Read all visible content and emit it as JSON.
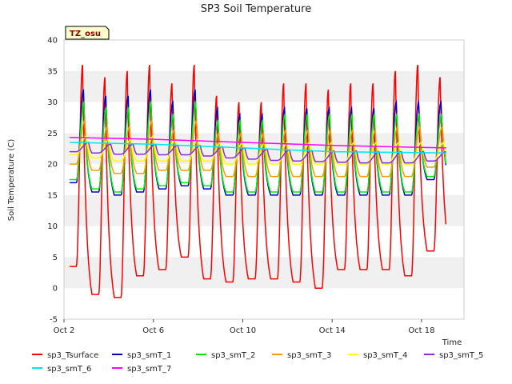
{
  "chart_data": {
    "type": "line",
    "title": "SP3 Soil Temperature",
    "xlabel": "Time",
    "ylabel": "Soil Temperature (C)",
    "badge": "TZ_osu",
    "xlim": [
      2.0,
      19.9
    ],
    "ylim": [
      -5,
      40
    ],
    "yticks": [
      -5,
      0,
      5,
      10,
      15,
      20,
      25,
      30,
      35,
      40
    ],
    "xticks": [
      {
        "value": 2,
        "label": "Oct 2"
      },
      {
        "value": 6,
        "label": "Oct 6"
      },
      {
        "value": 10,
        "label": "Oct 10"
      },
      {
        "value": 14,
        "label": "Oct 14"
      },
      {
        "value": 18,
        "label": "Oct 18"
      }
    ],
    "day_start": 2.25,
    "day_end": 19.1,
    "series": [
      {
        "name": "sp3_Tsurface",
        "color": "#ff0000",
        "peak_phase": 0.58,
        "width": 1.5,
        "highs": [
          36,
          34,
          35,
          36,
          33,
          36,
          31,
          30,
          30,
          33,
          33,
          32,
          33,
          33,
          35,
          36,
          34
        ],
        "lows": [
          3.5,
          -1,
          -1.5,
          2,
          3,
          5,
          1.5,
          1,
          1.5,
          1.5,
          1,
          0,
          3,
          3,
          3,
          2,
          6
        ]
      },
      {
        "name": "sp3_smT_1",
        "color": "#0000cc",
        "peak_phase": 0.62,
        "width": 1.5,
        "highs": [
          32,
          31,
          31,
          32,
          30,
          32,
          29,
          28,
          28,
          29,
          29,
          29,
          29,
          29,
          30,
          30,
          30
        ],
        "lows": [
          17,
          15.5,
          15,
          15.5,
          16,
          16.5,
          16,
          15,
          15,
          15,
          15,
          15,
          15,
          15,
          15,
          15,
          17.5
        ]
      },
      {
        "name": "sp3_smT_2",
        "color": "#00ee00",
        "peak_phase": 0.64,
        "width": 1.5,
        "highs": [
          30,
          29,
          29,
          30,
          28,
          30,
          27,
          27,
          27,
          28,
          28,
          28,
          28,
          28,
          28,
          28,
          28
        ],
        "lows": [
          17.5,
          16,
          15.5,
          16,
          16.5,
          17,
          16.5,
          15.5,
          15.5,
          15.5,
          15.5,
          15.5,
          15.5,
          15.5,
          15.5,
          15.5,
          18
        ]
      },
      {
        "name": "sp3_smT_3",
        "color": "#ff9900",
        "peak_phase": 0.68,
        "width": 1.5,
        "highs": [
          27,
          26,
          26,
          27,
          25.5,
          27,
          25,
          25,
          25,
          25.5,
          25.5,
          25.5,
          25.5,
          25.5,
          26,
          26,
          26
        ],
        "lows": [
          20,
          19,
          18.5,
          18.5,
          19,
          19,
          19,
          18,
          18,
          18,
          18,
          18,
          18,
          18,
          18,
          18,
          19.5
        ]
      },
      {
        "name": "sp3_smT_4",
        "color": "#ffff00",
        "peak_phase": 0.74,
        "width": 1.5,
        "highs": [
          24.5,
          24,
          24,
          24.5,
          24,
          24,
          23.5,
          23.5,
          23.5,
          23.5,
          23.5,
          23.5,
          23.5,
          23.5,
          23.5,
          23.5,
          23.5
        ],
        "lows": [
          21.5,
          21,
          20.5,
          20.5,
          20.5,
          20.5,
          20.5,
          20,
          20,
          20,
          20,
          20,
          20,
          20,
          20,
          20,
          20.5
        ]
      },
      {
        "name": "sp3_smT_5",
        "color": "#8a2be2",
        "peak_phase": 0.85,
        "width": 1.5,
        "highs": [
          23.5,
          23.2,
          23.2,
          23.2,
          23,
          23,
          22.8,
          22.6,
          22.4,
          22.3,
          22.2,
          22.1,
          22.1,
          22,
          22,
          22,
          22
        ],
        "lows": [
          22,
          21.8,
          21.6,
          21.6,
          21.5,
          21.5,
          21.3,
          21,
          20.8,
          20.6,
          20.5,
          20.4,
          20.3,
          20.2,
          20.2,
          20.2,
          20.5
        ]
      },
      {
        "name": "sp3_smT_6",
        "color": "#00e5ee",
        "flat": [
          [
            2.25,
            23.5
          ],
          [
            6,
            23.2
          ],
          [
            10,
            22.6
          ],
          [
            14,
            22.0
          ],
          [
            19.1,
            21.8
          ]
        ],
        "width": 1.5
      },
      {
        "name": "sp3_smT_7",
        "color": "#ff00ff",
        "flat": [
          [
            2.25,
            24.3
          ],
          [
            6,
            24.0
          ],
          [
            10,
            23.5
          ],
          [
            14,
            23.0
          ],
          [
            19.1,
            22.6
          ]
        ],
        "width": 1.5
      }
    ]
  }
}
